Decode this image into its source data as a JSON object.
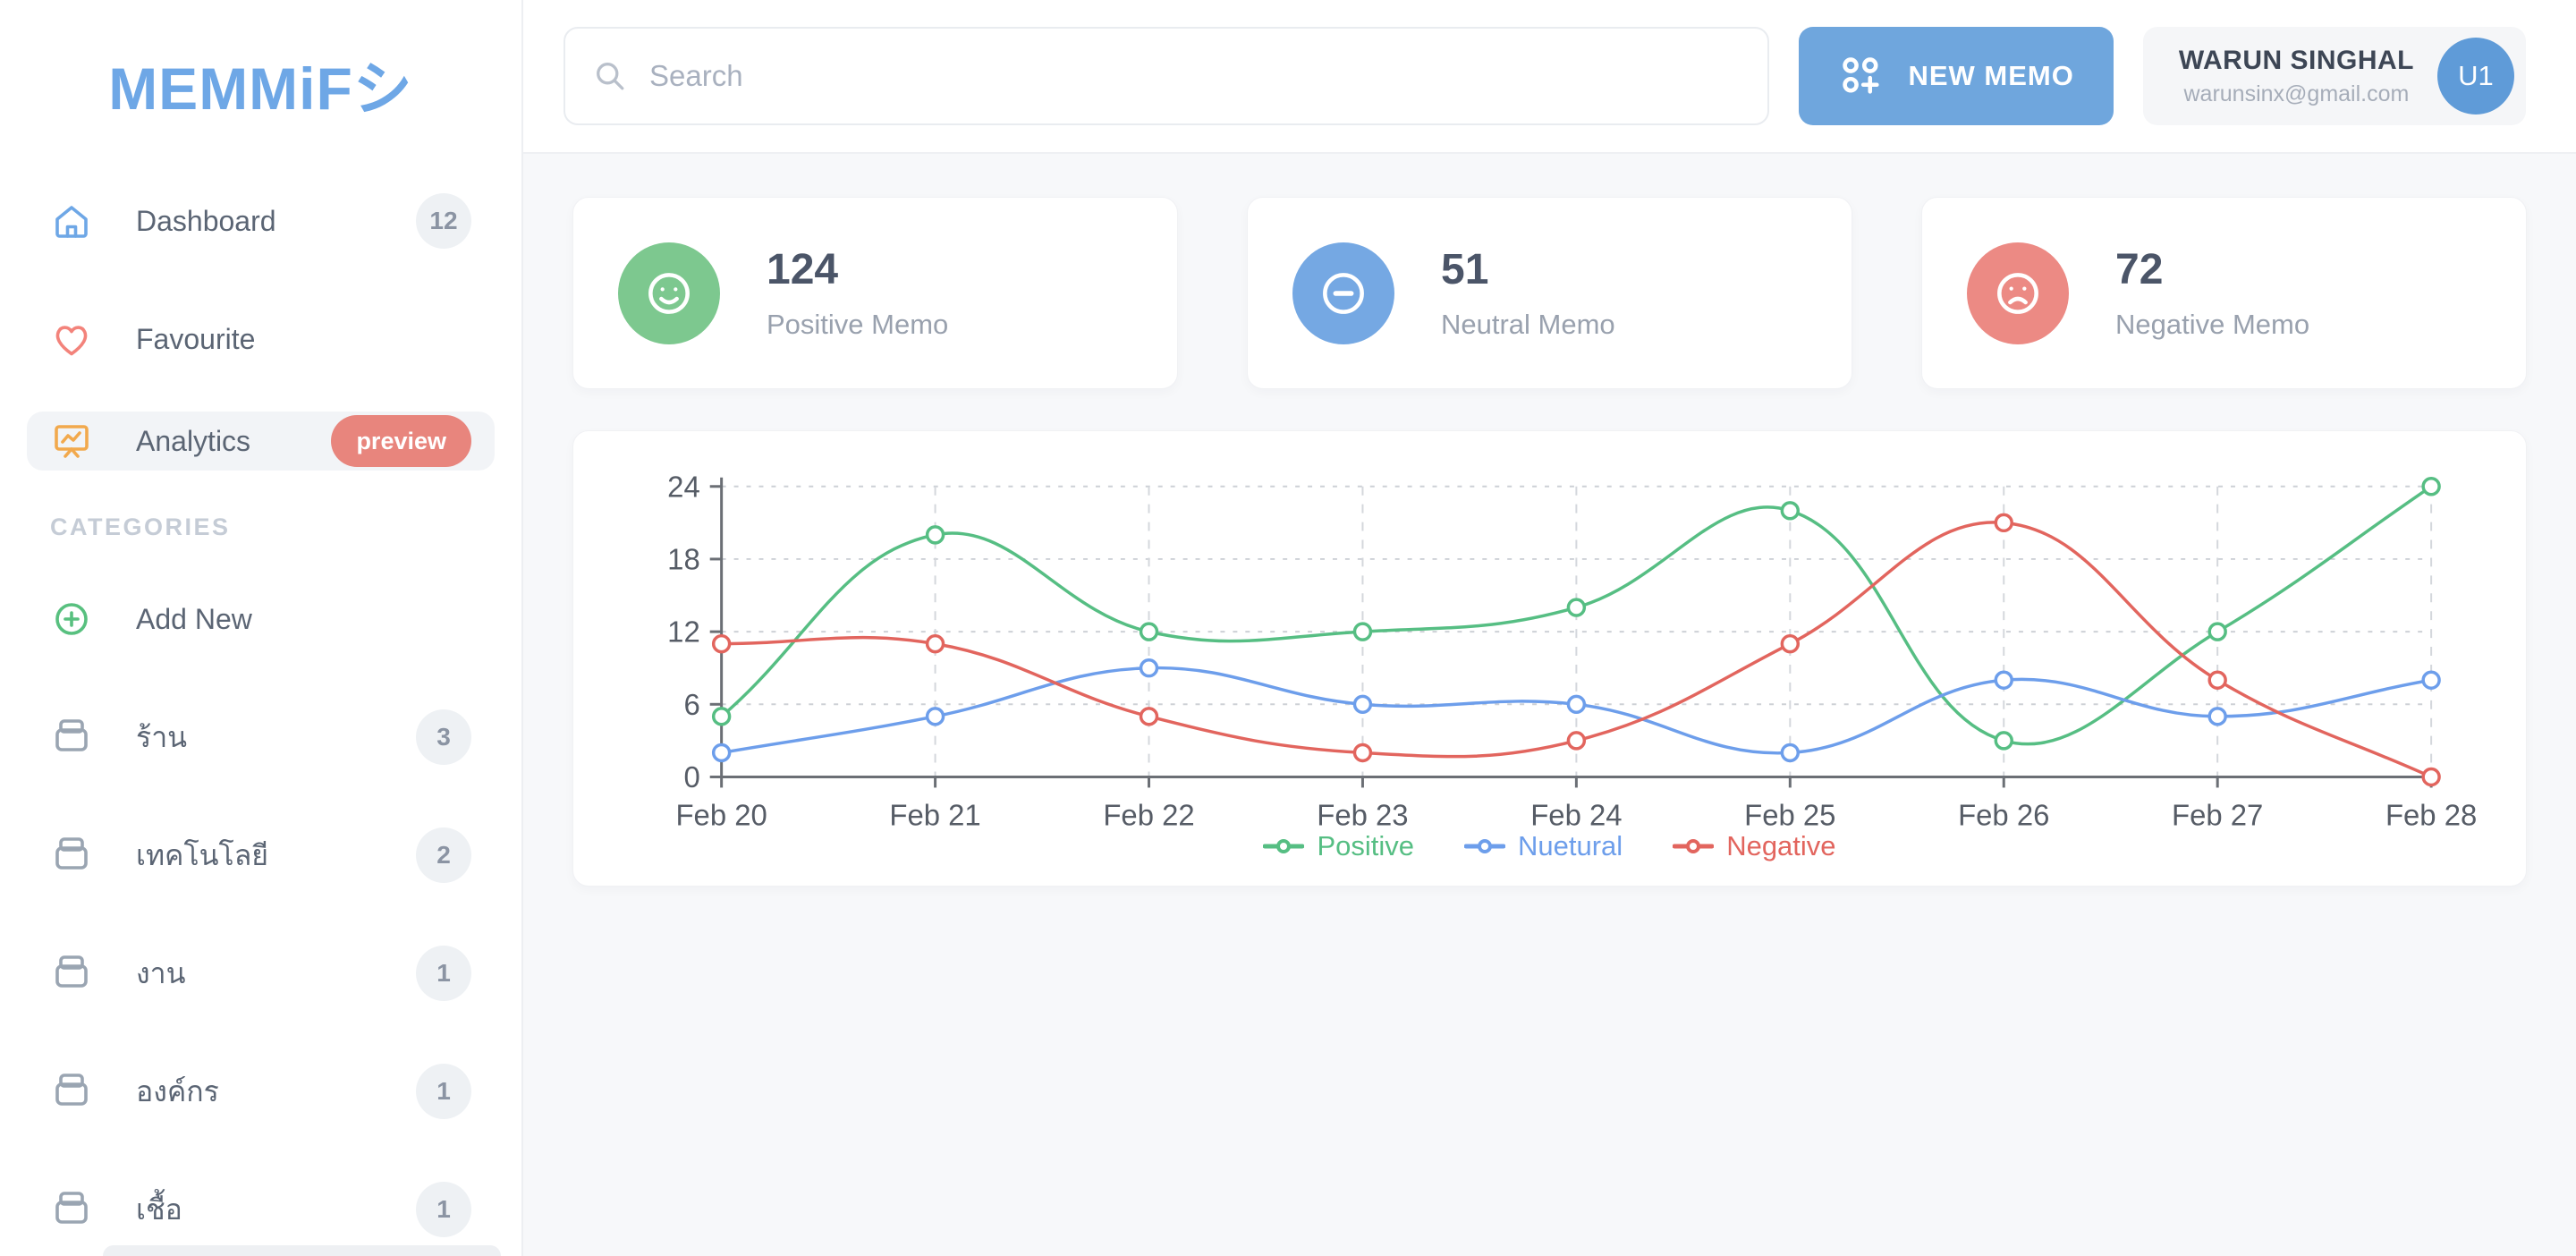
{
  "colors": {
    "accent": "#6ea7e6",
    "accent_button": "#6fa6dd",
    "positive": "#56be83",
    "neutral": "#6d9eeb",
    "negative": "#e2655e",
    "warning_icon": "#f2a94d",
    "preview_badge": "#e8857d"
  },
  "app": {
    "logo": "MEMMiFシ"
  },
  "sidebar": {
    "items": [
      {
        "label": "Dashboard",
        "badge": "12",
        "icon": "home-icon"
      },
      {
        "label": "Favourite",
        "icon": "heart-icon"
      },
      {
        "label": "Analytics",
        "badge": "preview",
        "icon": "presentation-icon",
        "active": true
      }
    ],
    "categories_header": "CATEGORIES",
    "add_new_label": "Add New",
    "categories": [
      {
        "label": "ร้าน",
        "count": "3"
      },
      {
        "label": "เทคโนโลยี",
        "count": "2"
      },
      {
        "label": "งาน",
        "count": "1"
      },
      {
        "label": "องค์กร",
        "count": "1"
      },
      {
        "label": "เชื้อ",
        "count": "1"
      }
    ]
  },
  "header": {
    "search_placeholder": "Search",
    "new_memo_label": "NEW MEMO",
    "user": {
      "name": "WARUN SINGHAL",
      "email": "warunsinx@gmail.com",
      "avatar": "U1"
    }
  },
  "stats": [
    {
      "value": "124",
      "label": "Positive Memo",
      "color": "#7dc88f",
      "icon": "smile-icon"
    },
    {
      "value": "51",
      "label": "Neutral Memo",
      "color": "#75a8e3",
      "icon": "neutral-face-icon"
    },
    {
      "value": "72",
      "label": "Negative Memo",
      "color": "#ec8a84",
      "icon": "frown-face-icon"
    }
  ],
  "chart_data": {
    "type": "line",
    "x": [
      "Feb 20",
      "Feb 21",
      "Feb 22",
      "Feb 23",
      "Feb 24",
      "Feb 25",
      "Feb 26",
      "Feb 27",
      "Feb 28"
    ],
    "series": [
      {
        "name": "Positive",
        "color": "#56be83",
        "values": [
          5,
          20,
          12,
          12,
          14,
          22,
          3,
          12,
          24
        ]
      },
      {
        "name": "Nuetural",
        "color": "#6d9eeb",
        "values": [
          2,
          5,
          9,
          6,
          6,
          2,
          8,
          5,
          8
        ]
      },
      {
        "name": "Negative",
        "color": "#e2655e",
        "values": [
          11,
          11,
          5,
          2,
          3,
          11,
          21,
          8,
          0
        ]
      }
    ],
    "ylim": [
      0,
      24
    ],
    "yticks": [
      0,
      6,
      12,
      18,
      24
    ],
    "grid": true,
    "smooth": true,
    "legend_position": "bottom"
  }
}
